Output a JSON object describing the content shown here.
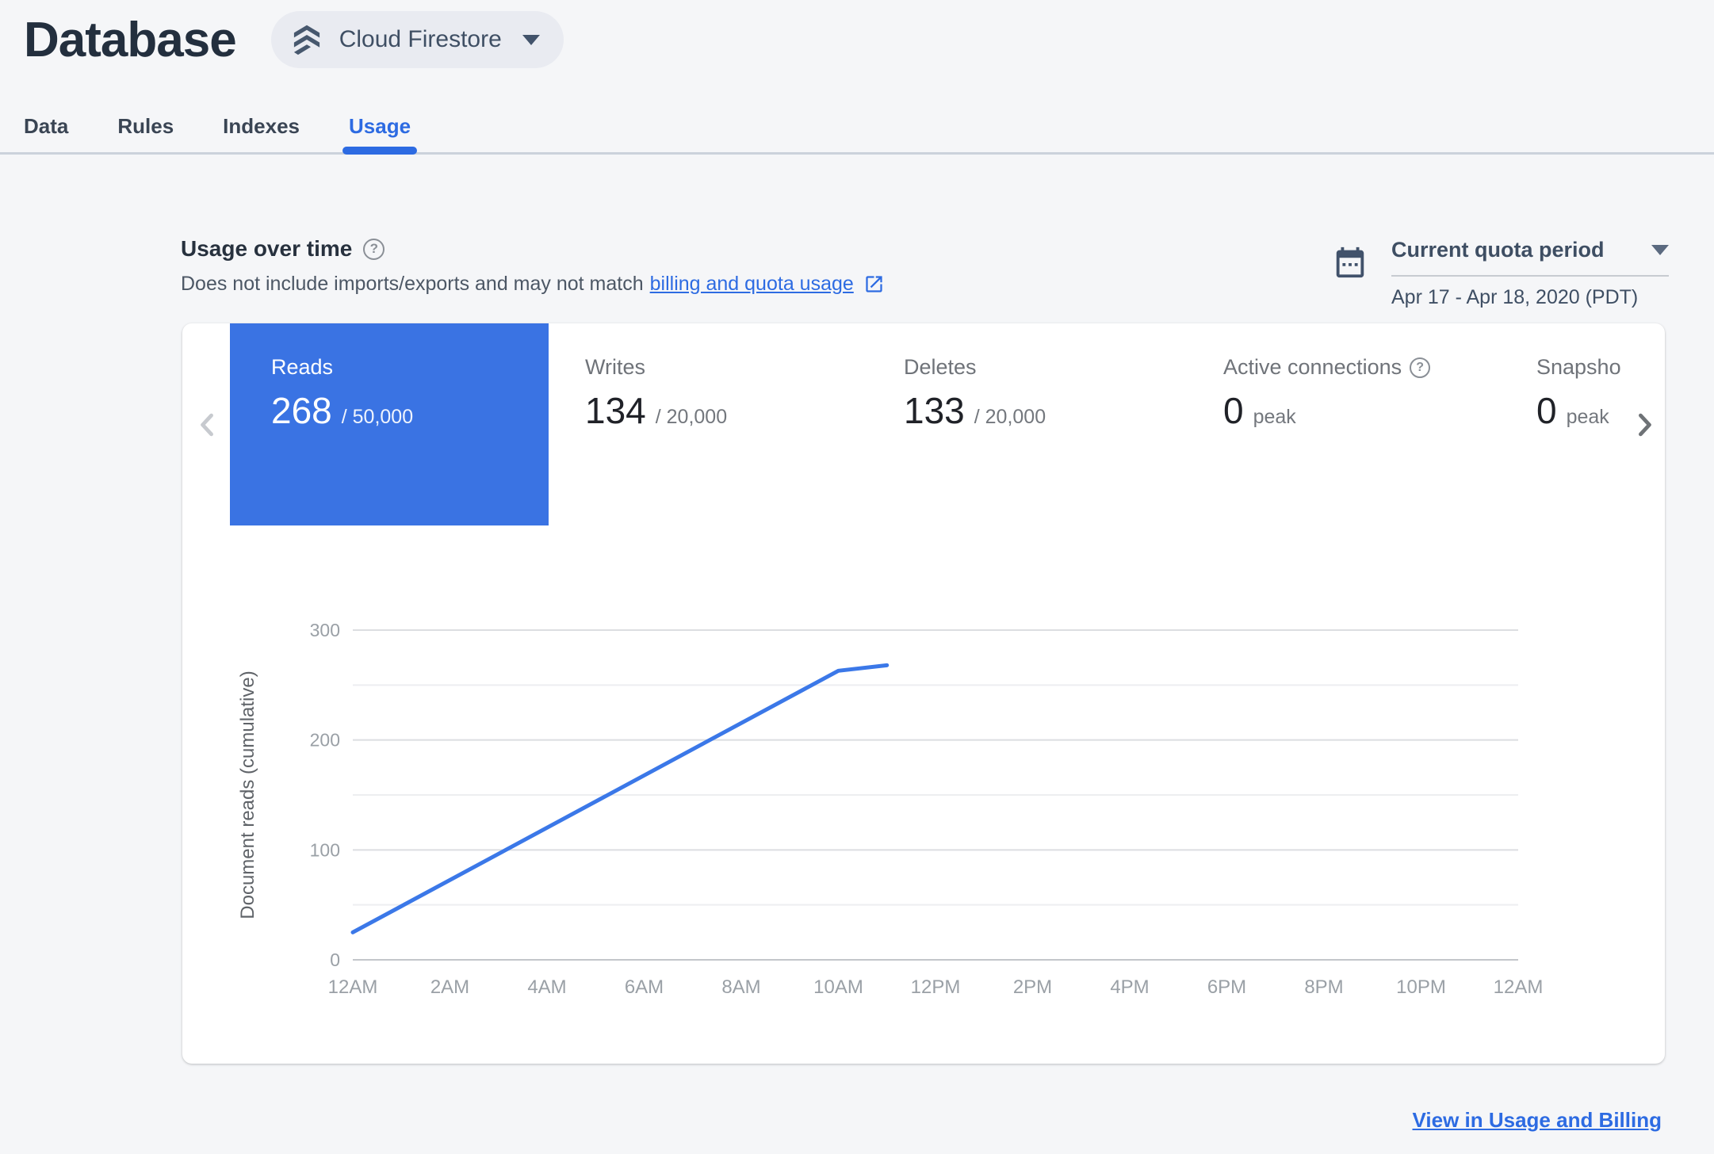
{
  "header": {
    "title": "Database",
    "product": "Cloud Firestore"
  },
  "tabs": [
    {
      "label": "Data",
      "active": false
    },
    {
      "label": "Rules",
      "active": false
    },
    {
      "label": "Indexes",
      "active": false
    },
    {
      "label": "Usage",
      "active": true
    }
  ],
  "usage_section": {
    "heading": "Usage over time",
    "subtitle_prefix": "Does not include imports/exports and may not match",
    "subtitle_link": "billing and quota usage"
  },
  "quota": {
    "selector_label": "Current quota period",
    "date_range": "Apr 17 - Apr 18, 2020 (PDT)"
  },
  "metrics": [
    {
      "label": "Reads",
      "value": "268",
      "limit": "/ 50,000",
      "selected": true
    },
    {
      "label": "Writes",
      "value": "134",
      "limit": "/ 20,000"
    },
    {
      "label": "Deletes",
      "value": "133",
      "limit": "/ 20,000"
    },
    {
      "label": "Active connections",
      "value": "0",
      "suffix": "peak"
    },
    {
      "label": "Snapsho",
      "value": "0",
      "suffix": "peak"
    }
  ],
  "footer": {
    "link": "View in Usage and Billing"
  },
  "colors": {
    "accent_blue": "#3a73e3",
    "link_blue": "#2d6be2",
    "line_blue": "#3b78e8"
  },
  "chart_data": {
    "type": "line",
    "title": "",
    "xlabel": "",
    "ylabel": "Document reads (cumulative)",
    "ylim": [
      0,
      300
    ],
    "y_major_ticks": [
      0,
      100,
      200,
      300
    ],
    "y_gridlines": [
      0,
      50,
      100,
      150,
      200,
      250,
      300
    ],
    "xlim_hours": [
      0,
      24
    ],
    "x_ticks": [
      {
        "h": 0,
        "label": "12AM"
      },
      {
        "h": 2,
        "label": "2AM"
      },
      {
        "h": 4,
        "label": "4AM"
      },
      {
        "h": 6,
        "label": "6AM"
      },
      {
        "h": 8,
        "label": "8AM"
      },
      {
        "h": 10,
        "label": "10AM"
      },
      {
        "h": 12,
        "label": "12PM"
      },
      {
        "h": 14,
        "label": "2PM"
      },
      {
        "h": 16,
        "label": "4PM"
      },
      {
        "h": 18,
        "label": "6PM"
      },
      {
        "h": 20,
        "label": "8PM"
      },
      {
        "h": 22,
        "label": "10PM"
      },
      {
        "h": 24,
        "label": "12AM"
      }
    ],
    "series": [
      {
        "name": "Document reads (cumulative)",
        "x_hours": [
          0,
          10,
          11
        ],
        "values": [
          25,
          263,
          268
        ]
      }
    ],
    "line_color": "#3b78e8",
    "grid": "on",
    "legend": "none"
  }
}
